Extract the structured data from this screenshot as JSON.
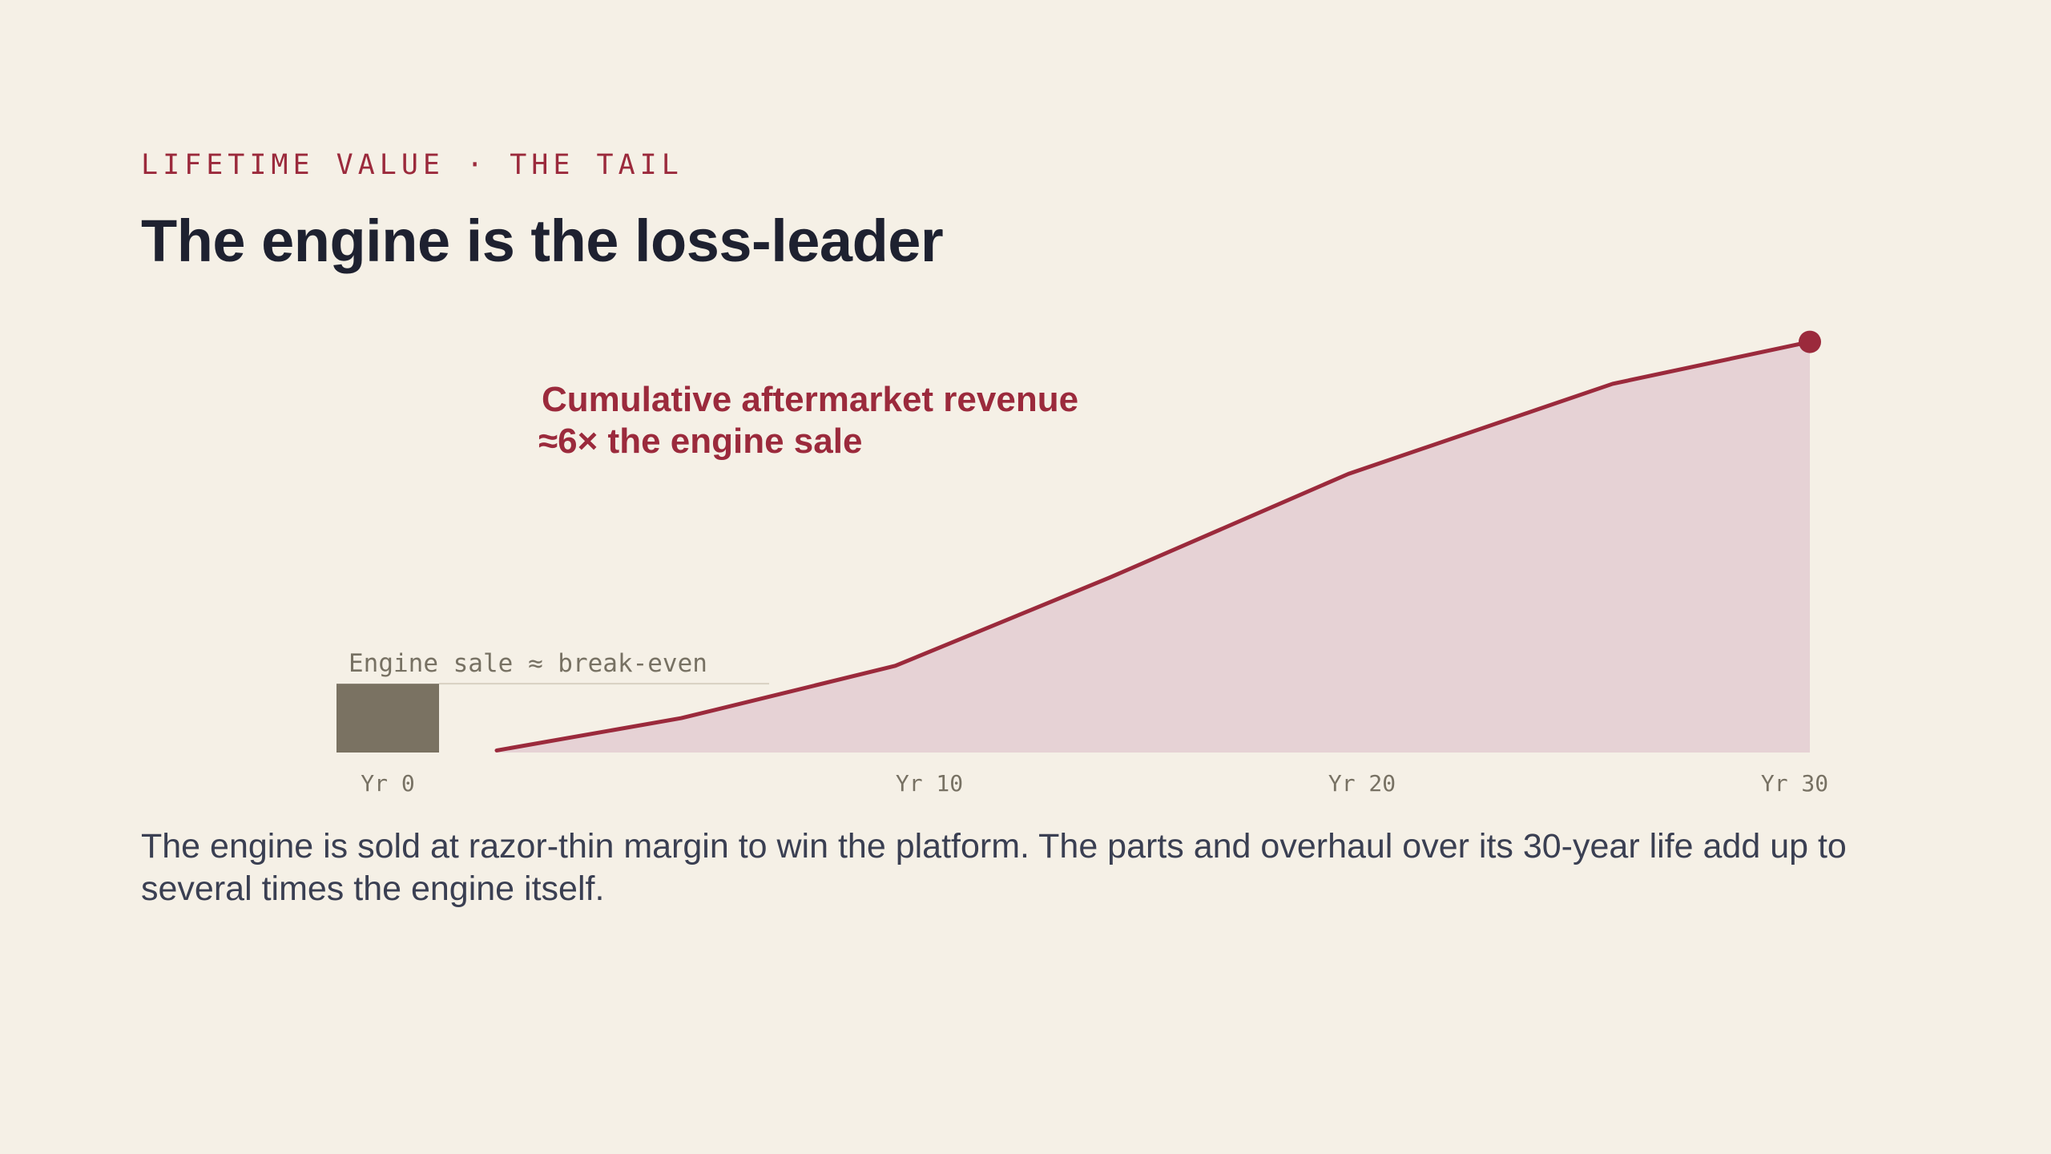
{
  "eyebrow": "LIFETIME VALUE · THE TAIL",
  "title": "The engine is the loss-leader",
  "caption": "The engine is sold at razor-thin margin to win the platform. The parts and overhaul over its 30-year life add up to several times the engine itself.",
  "colors": {
    "background": "#f5f0e6",
    "accent": "#9b2a3c",
    "area_fill": "#e6d2d5",
    "engine_bar": "#7a7262",
    "muted_text": "#777163",
    "title_text": "#1e2130"
  },
  "chart_data": {
    "type": "area",
    "xlabel": "",
    "ylabel": "",
    "xlim": [
      0,
      30
    ],
    "ylim": [
      0,
      6
    ],
    "grid": false,
    "x_ticks": [
      {
        "value": 0,
        "label": "Yr 0"
      },
      {
        "value": 10,
        "label": "Yr 10"
      },
      {
        "value": 20,
        "label": "Yr 20"
      },
      {
        "value": 30,
        "label": "Yr 30"
      }
    ],
    "engine_sale": {
      "x": 0,
      "value": 1,
      "label": "Engine sale ≈ break-even"
    },
    "series": [
      {
        "x": [
          3.7,
          8.1,
          13.2,
          18.3,
          24.0,
          30.3,
          35.0
        ],
        "values": [
          0.03,
          0.5,
          1.26,
          2.54,
          4.05,
          5.36,
          5.97
        ]
      }
    ],
    "annotation": {
      "line1": "Cumulative aftermarket revenue",
      "line2": "≈6× the engine sale"
    }
  }
}
